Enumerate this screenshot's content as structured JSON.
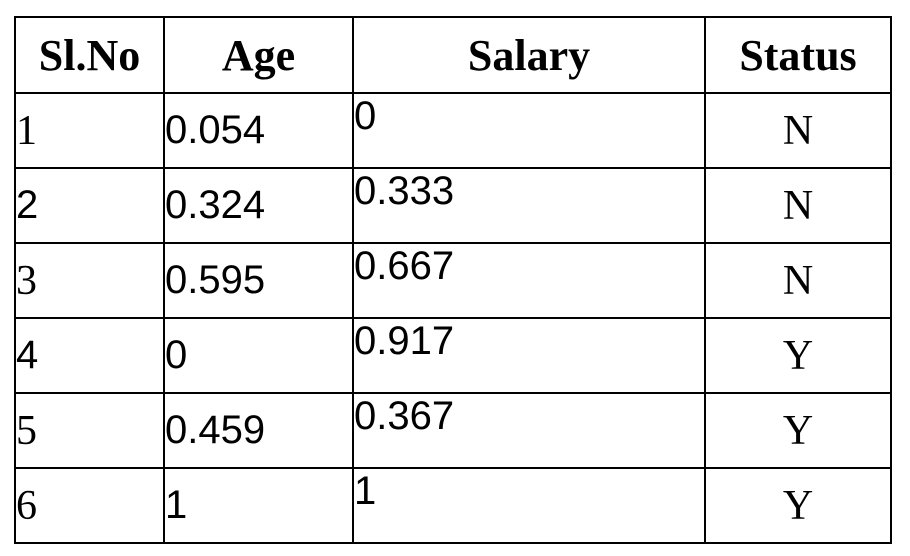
{
  "table": {
    "headers": [
      "Sl.No",
      "Age",
      "Salary",
      "Status"
    ],
    "rows": [
      {
        "sl_no": "1",
        "age": "0.054",
        "salary": "0",
        "status": "N"
      },
      {
        "sl_no": "2",
        "age": "0.324",
        "salary": "0.333",
        "status": "N"
      },
      {
        "sl_no": "3",
        "age": "0.595",
        "salary": "0.667",
        "status": "N"
      },
      {
        "sl_no": "4",
        "age": "0",
        "salary": "0.917",
        "status": "Y"
      },
      {
        "sl_no": "5",
        "age": "0.459",
        "salary": "0.367",
        "status": "Y"
      },
      {
        "sl_no": "6",
        "age": "1",
        "salary": "1",
        "status": "Y"
      }
    ]
  }
}
